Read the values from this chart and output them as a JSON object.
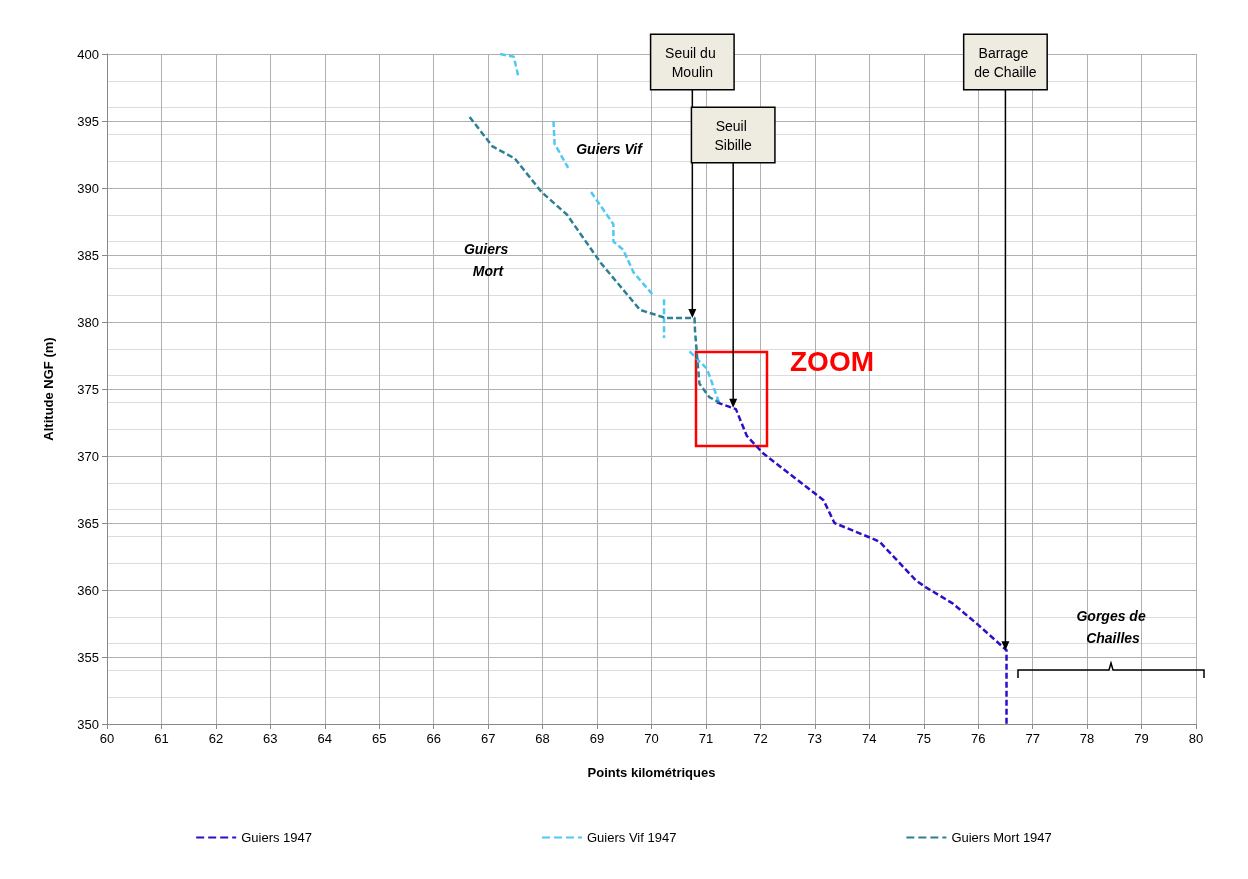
{
  "chart_data": {
    "type": "line",
    "xlabel": "Points kilométriques",
    "ylabel": "Altitude NGF (m)",
    "xlim": [
      60,
      80
    ],
    "xticks": [
      60,
      61,
      62,
      63,
      64,
      65,
      66,
      67,
      68,
      69,
      70,
      71,
      72,
      73,
      74,
      75,
      76,
      77,
      78,
      79,
      80
    ],
    "ylim": [
      350,
      400
    ],
    "yticks": [
      350,
      355,
      360,
      365,
      370,
      375,
      380,
      385,
      390,
      395,
      400
    ],
    "grid": true,
    "legend": "bottom",
    "line_style": "dashed",
    "marker": "none",
    "series": [
      {
        "name": "Guiers 1947",
        "color": "#2a10c8",
        "x": [
          71.2,
          71.55,
          71.75,
          72.05,
          73.16,
          73.36,
          74.08,
          74.19,
          74.86,
          75.04,
          75.53,
          76.0,
          76.52,
          76.52
        ],
        "values": [
          374.0,
          373.5,
          371.5,
          370.2,
          366.7,
          365.0,
          363.8,
          363.6,
          360.7,
          360.2,
          359.0,
          357.4,
          355.5,
          350
        ]
      },
      {
        "name": "Guiers Vif 1947",
        "color": "#4dc9f5",
        "x": [
          67.22,
          67.47,
          67.55,
          67.9,
          68.2,
          68.22,
          68.47,
          68.7,
          68.89,
          69.3,
          69.3,
          69.48,
          69.67,
          70.03,
          70.1,
          70.23,
          70.23,
          70.5,
          70.7,
          71.02,
          71.24
        ],
        "values": [
          400.0,
          399.8,
          398.4,
          null,
          395.0,
          393.3,
          391.5,
          null,
          389.7,
          387.3,
          386.0,
          385.4,
          383.7,
          382.0,
          null,
          381.7,
          378.8,
          null,
          377.8,
          376.5,
          374.0
        ]
      },
      {
        "name": "Guiers Mort 1947",
        "color": "#2e7f93",
        "x": [
          66.66,
          67.08,
          67.49,
          67.98,
          68.45,
          69.07,
          69.79,
          70.26,
          70.79,
          70.8,
          70.84,
          70.88,
          71.06,
          71.24
        ],
        "values": [
          395.3,
          393.1,
          392.2,
          389.7,
          388.0,
          384.4,
          380.9,
          380.3,
          380.3,
          379.3,
          377.3,
          375.4,
          374.4,
          374.0
        ]
      }
    ],
    "annotations": [
      {
        "text": "Seuil du Moulin",
        "x": 70.75,
        "y": 380.3
      },
      {
        "text": "Seuil Sibille",
        "x": 71.5,
        "y": 373.6
      },
      {
        "text": "Barrage de Chaille",
        "x": 76.5,
        "y": 355.5
      },
      "Guiers Vif",
      "Guiers Mort",
      "Gorges de Chailles",
      "ZOOM"
    ]
  }
}
